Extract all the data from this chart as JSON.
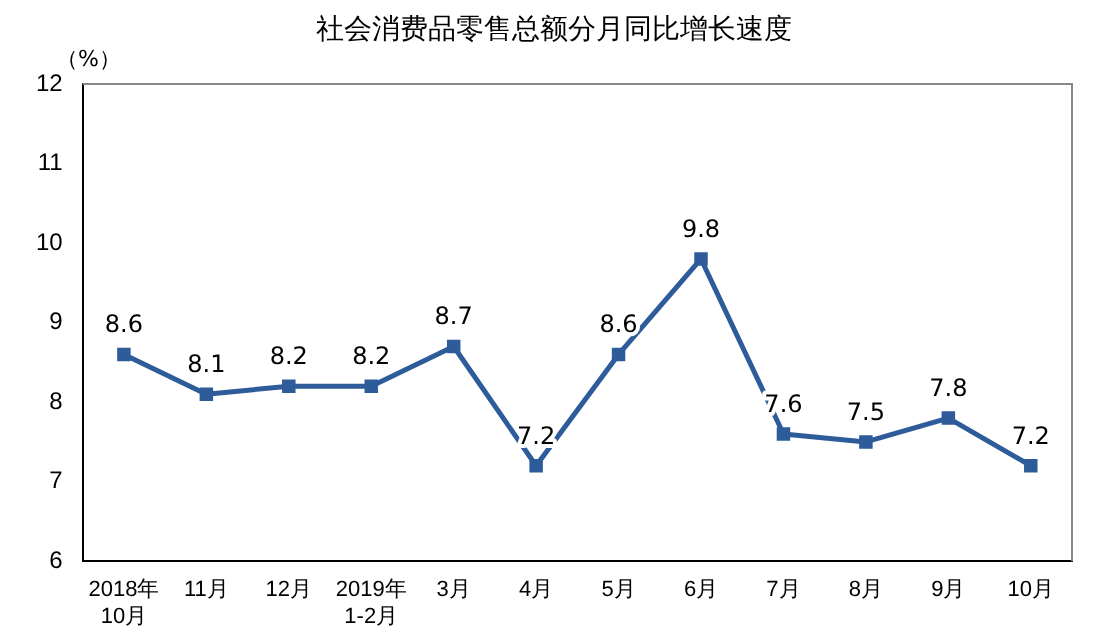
{
  "chart_data": {
    "type": "line",
    "title": "社会消费品零售总额分月同比增长速度",
    "ylabel": "（%）",
    "categories": [
      "2018年\n10月",
      "11月",
      "12月",
      "2019年\n1-2月",
      "3月",
      "4月",
      "5月",
      "6月",
      "7月",
      "8月",
      "9月",
      "10月"
    ],
    "series": [
      {
        "color": "#2e5c9a",
        "values": [
          8.6,
          8.1,
          8.2,
          8.2,
          8.7,
          7.2,
          8.6,
          9.8,
          7.6,
          7.5,
          7.8,
          7.2
        ]
      }
    ],
    "ylim": [
      6,
      12
    ],
    "yticks": [
      6,
      7,
      8,
      9,
      10,
      11,
      12
    ],
    "grid": false,
    "legend": false,
    "marker": "square",
    "line_style": "solid",
    "data_labels": true
  }
}
